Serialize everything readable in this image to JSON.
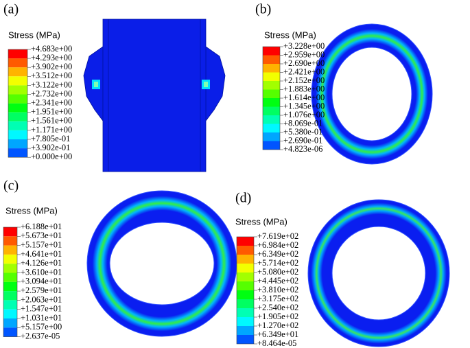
{
  "legend_colors": [
    "#ff0000",
    "#ff5a00",
    "#ffb300",
    "#f2ff00",
    "#a2ff00",
    "#55ff00",
    "#00ff11",
    "#00ff62",
    "#00ffb3",
    "#00f8ff",
    "#00a6ff",
    "#0055ff"
  ],
  "panels": [
    {
      "label": "(a)",
      "legend_title": "Stress (MPa)",
      "legend_labels": [
        "+4.683e+00",
        "+4.293e+00",
        "+3.902e+00",
        "+3.512e+00",
        "+3.122e+00",
        "+2.732e+00",
        "+2.341e+00",
        "+1.951e+00",
        "+1.561e+00",
        "+1.171e+00",
        "+7.805e-01",
        "+3.902e-01",
        "+0.000e+00"
      ]
    },
    {
      "label": "(b)",
      "legend_title": "Stress (MPa)",
      "legend_labels": [
        "+3.228e+00",
        "+2.959e+00",
        "+2.690e+00",
        "+2.421e+00",
        "+2.152e+00",
        "+1.883e+00",
        "+1.614e+00",
        "+1.345e+00",
        "+1.076e+00",
        "+8.069e-01",
        "+5.380e-01",
        "+2.690e-01",
        "+4.823e-06"
      ]
    },
    {
      "label": "(c)",
      "legend_title": "Stress (MPa)",
      "legend_labels": [
        "+6.188e+01",
        "+5.673e+01",
        "+5.157e+01",
        "+4.641e+01",
        "+4.126e+01",
        "+3.610e+01",
        "+3.094e+01",
        "+2.579e+01",
        "+2.063e+01",
        "+1.547e+01",
        "+1.031e+01",
        "+5.157e+00",
        "+2.637e-05"
      ]
    },
    {
      "label": "(d)",
      "legend_title": "Stress (MPa)",
      "legend_labels": [
        "+7.619e+02",
        "+6.984e+02",
        "+6.349e+02",
        "+5.714e+02",
        "+5.080e+02",
        "+4.445e+02",
        "+3.810e+02",
        "+3.175e+02",
        "+2.540e+02",
        "+1.905e+02",
        "+1.270e+02",
        "+6.349e+01",
        "+8.464e-05"
      ]
    }
  ]
}
